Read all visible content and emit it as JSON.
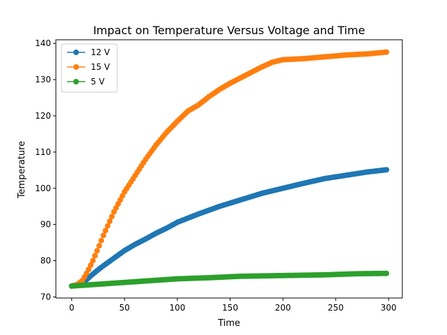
{
  "chart_data": {
    "type": "line",
    "title": "Impact on Temperature Versus Voltage and Time",
    "xlabel": "Time",
    "ylabel": "Temperature",
    "xlim": [
      -15,
      313
    ],
    "ylim": [
      69.7,
      141.0
    ],
    "xticks": [
      0,
      50,
      100,
      150,
      200,
      250,
      300
    ],
    "yticks": [
      70,
      80,
      90,
      100,
      110,
      120,
      130,
      140
    ],
    "grid": false,
    "legend_position": "top-left",
    "marker": "circle",
    "x_step": 2,
    "x_range": [
      0,
      298
    ],
    "series": [
      {
        "name": "12 V",
        "color": "#1f77b4",
        "points": [
          [
            0,
            73.0
          ],
          [
            5,
            73.2
          ],
          [
            10,
            73.8
          ],
          [
            15,
            75.0
          ],
          [
            20,
            76.3
          ],
          [
            25,
            77.5
          ],
          [
            30,
            78.6
          ],
          [
            40,
            80.7
          ],
          [
            50,
            82.8
          ],
          [
            60,
            84.5
          ],
          [
            70,
            86.0
          ],
          [
            80,
            87.6
          ],
          [
            90,
            89.0
          ],
          [
            100,
            90.6
          ],
          [
            120,
            92.9
          ],
          [
            140,
            95.0
          ],
          [
            160,
            96.8
          ],
          [
            180,
            98.6
          ],
          [
            200,
            100.0
          ],
          [
            220,
            101.4
          ],
          [
            240,
            102.7
          ],
          [
            260,
            103.6
          ],
          [
            280,
            104.5
          ],
          [
            298,
            105.1
          ]
        ]
      },
      {
        "name": "15 V",
        "color": "#ff7f0e",
        "points": [
          [
            0,
            73.0
          ],
          [
            5,
            73.4
          ],
          [
            10,
            74.5
          ],
          [
            15,
            77.0
          ],
          [
            20,
            80.0
          ],
          [
            25,
            83.4
          ],
          [
            30,
            87.0
          ],
          [
            40,
            93.5
          ],
          [
            50,
            99.0
          ],
          [
            60,
            103.5
          ],
          [
            70,
            108.0
          ],
          [
            80,
            112.0
          ],
          [
            90,
            115.5
          ],
          [
            100,
            118.5
          ],
          [
            110,
            121.3
          ],
          [
            120,
            123.0
          ],
          [
            130,
            125.3
          ],
          [
            140,
            127.3
          ],
          [
            150,
            129.0
          ],
          [
            160,
            130.5
          ],
          [
            170,
            132.0
          ],
          [
            180,
            133.5
          ],
          [
            190,
            134.8
          ],
          [
            200,
            135.5
          ],
          [
            220,
            135.8
          ],
          [
            240,
            136.3
          ],
          [
            260,
            136.8
          ],
          [
            280,
            137.1
          ],
          [
            298,
            137.6
          ]
        ]
      },
      {
        "name": "5 V",
        "color": "#2ca02c",
        "points": [
          [
            0,
            73.0
          ],
          [
            20,
            73.4
          ],
          [
            50,
            74.0
          ],
          [
            80,
            74.6
          ],
          [
            100,
            75.0
          ],
          [
            130,
            75.3
          ],
          [
            160,
            75.7
          ],
          [
            200,
            75.9
          ],
          [
            240,
            76.1
          ],
          [
            270,
            76.4
          ],
          [
            298,
            76.5
          ]
        ]
      }
    ]
  }
}
